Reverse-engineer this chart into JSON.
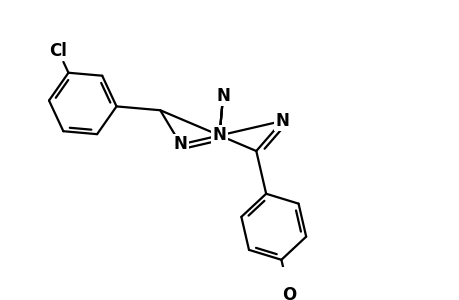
{
  "background_color": "#ffffff",
  "line_color": "#000000",
  "line_width": 1.6,
  "font_size": 12,
  "figsize": [
    4.6,
    3.0
  ],
  "dpi": 100,
  "xlim": [
    -4.5,
    5.5
  ],
  "ylim": [
    -3.5,
    3.2
  ]
}
